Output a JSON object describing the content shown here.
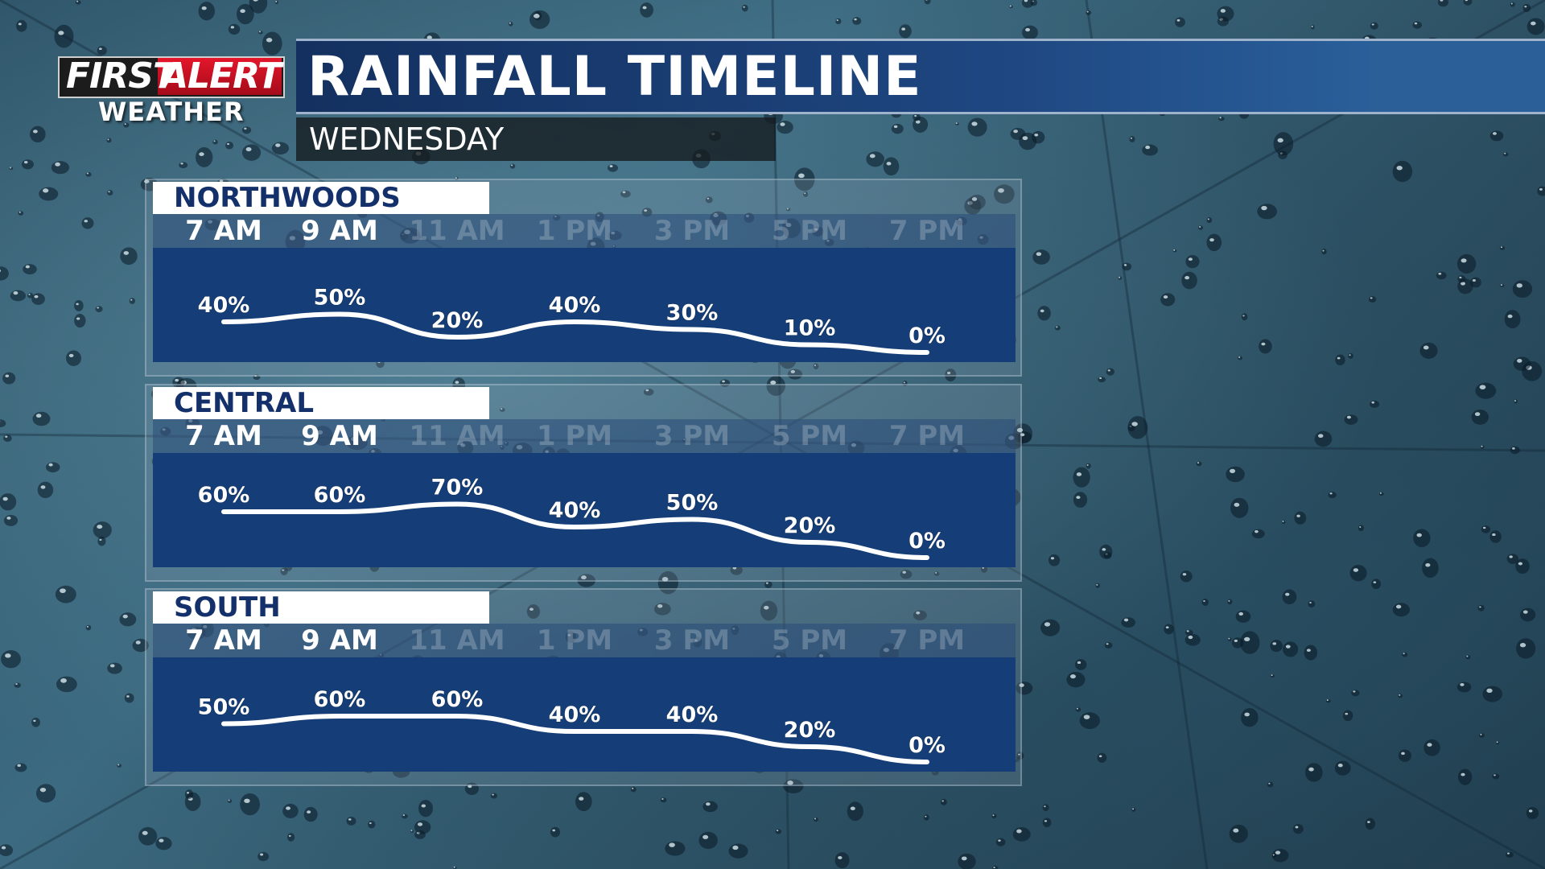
{
  "brand": {
    "logo_line1_part1": "FIRST",
    "logo_line1_part2": "ALERT",
    "logo_line2": "WEATHER"
  },
  "header": {
    "title": "RAINFALL TIMELINE",
    "subtitle": "WEDNESDAY"
  },
  "colors": {
    "title_bar": "#1e4680",
    "plot_background": "#153e78",
    "region_label": "#13306a",
    "curve": "#ffffff",
    "logo_alert_red": "#e4162b"
  },
  "chart_data": [
    {
      "type": "line",
      "title": "NORTHWOODS",
      "categories": [
        "7 AM",
        "9 AM",
        "11 AM",
        "1 PM",
        "3 PM",
        "5 PM",
        "7 PM"
      ],
      "highlighted_categories": [
        "7 AM",
        "9 AM"
      ],
      "values": [
        40,
        50,
        20,
        40,
        30,
        10,
        0
      ],
      "labels": [
        "40%",
        "50%",
        "20%",
        "40%",
        "30%",
        "10%",
        "0%"
      ],
      "ylim": [
        0,
        100
      ],
      "grid": false
    },
    {
      "type": "line",
      "title": "CENTRAL",
      "categories": [
        "7 AM",
        "9 AM",
        "11 AM",
        "1 PM",
        "3 PM",
        "5 PM",
        "7 PM"
      ],
      "highlighted_categories": [
        "7 AM",
        "9 AM"
      ],
      "values": [
        60,
        60,
        70,
        40,
        50,
        20,
        0
      ],
      "labels": [
        "60%",
        "60%",
        "70%",
        "40%",
        "50%",
        "20%",
        "0%"
      ],
      "ylim": [
        0,
        100
      ],
      "grid": false
    },
    {
      "type": "line",
      "title": "SOUTH",
      "categories": [
        "7 AM",
        "9 AM",
        "11 AM",
        "1 PM",
        "3 PM",
        "5 PM",
        "7 PM"
      ],
      "highlighted_categories": [
        "7 AM",
        "9 AM"
      ],
      "values": [
        50,
        60,
        60,
        40,
        40,
        20,
        0
      ],
      "labels": [
        "50%",
        "60%",
        "60%",
        "40%",
        "40%",
        "20%",
        "0%"
      ],
      "ylim": [
        0,
        100
      ],
      "grid": false
    }
  ]
}
